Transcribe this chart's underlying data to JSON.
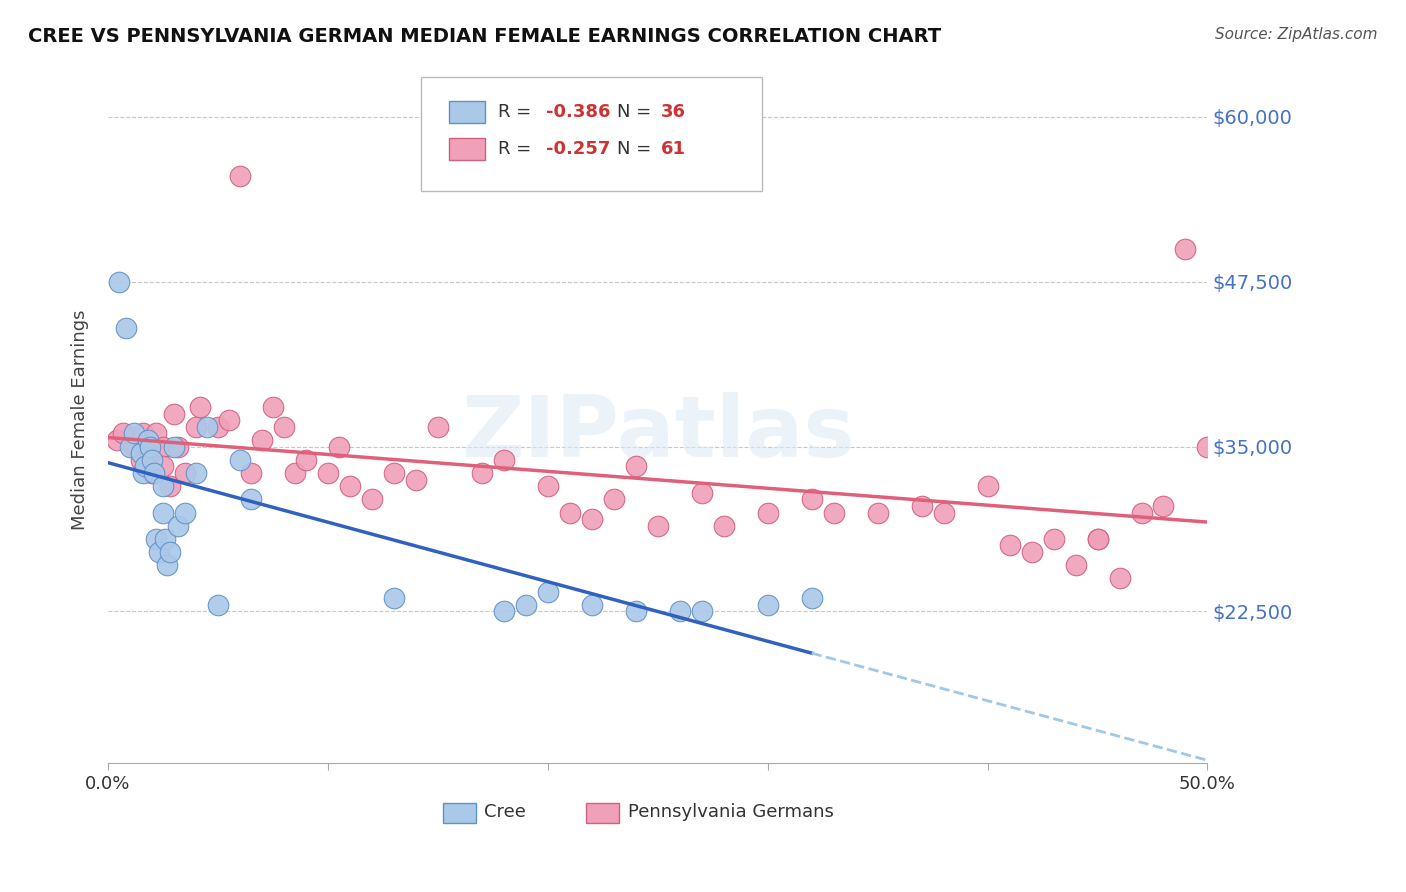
{
  "title": "CREE VS PENNSYLVANIA GERMAN MEDIAN FEMALE EARNINGS CORRELATION CHART",
  "source": "Source: ZipAtlas.com",
  "ylabel": "Median Female Earnings",
  "xmin": 0.0,
  "xmax": 0.5,
  "ymin": 11000,
  "ymax": 63000,
  "yticks": [
    22500,
    35000,
    47500,
    60000
  ],
  "ytick_labels": [
    "$22,500",
    "$35,000",
    "$47,500",
    "$60,000"
  ],
  "background_color": "#ffffff",
  "cree_color": "#aac8e8",
  "cree_edge_color": "#6090c8",
  "penn_color": "#f0a0b8",
  "penn_edge_color": "#d06080",
  "cree_R": -0.386,
  "cree_N": 36,
  "penn_R": -0.257,
  "penn_N": 61,
  "cree_line_color": "#3060c0",
  "penn_line_color": "#e0607a",
  "dashed_line_color": "#a0c8e8",
  "cree_scatter_x": [
    0.005,
    0.008,
    0.01,
    0.012,
    0.015,
    0.016,
    0.017,
    0.018,
    0.019,
    0.02,
    0.021,
    0.022,
    0.023,
    0.025,
    0.025,
    0.026,
    0.027,
    0.028,
    0.03,
    0.032,
    0.035,
    0.04,
    0.045,
    0.05,
    0.06,
    0.065,
    0.13,
    0.18,
    0.19,
    0.2,
    0.22,
    0.24,
    0.26,
    0.27,
    0.3,
    0.32
  ],
  "cree_scatter_y": [
    47500,
    44000,
    35000,
    36000,
    34500,
    33000,
    33500,
    35500,
    35000,
    34000,
    33000,
    28000,
    27000,
    32000,
    30000,
    28000,
    26000,
    27000,
    35000,
    29000,
    30000,
    33000,
    36500,
    23000,
    34000,
    31000,
    23500,
    22500,
    23000,
    24000,
    23000,
    22500,
    22500,
    22500,
    23000,
    23500
  ],
  "penn_scatter_x": [
    0.004,
    0.007,
    0.012,
    0.015,
    0.016,
    0.018,
    0.019,
    0.02,
    0.022,
    0.025,
    0.025,
    0.028,
    0.03,
    0.032,
    0.035,
    0.04,
    0.042,
    0.05,
    0.055,
    0.06,
    0.065,
    0.07,
    0.075,
    0.08,
    0.085,
    0.09,
    0.1,
    0.105,
    0.11,
    0.12,
    0.13,
    0.14,
    0.15,
    0.17,
    0.18,
    0.2,
    0.21,
    0.22,
    0.23,
    0.24,
    0.25,
    0.27,
    0.28,
    0.3,
    0.32,
    0.33,
    0.35,
    0.37,
    0.38,
    0.4,
    0.41,
    0.42,
    0.43,
    0.44,
    0.45,
    0.46,
    0.47,
    0.48,
    0.49,
    0.5,
    0.45
  ],
  "penn_scatter_y": [
    35500,
    36000,
    35000,
    34000,
    36000,
    35000,
    34500,
    33000,
    36000,
    35000,
    33500,
    32000,
    37500,
    35000,
    33000,
    36500,
    38000,
    36500,
    37000,
    55500,
    33000,
    35500,
    38000,
    36500,
    33000,
    34000,
    33000,
    35000,
    32000,
    31000,
    33000,
    32500,
    36500,
    33000,
    34000,
    32000,
    30000,
    29500,
    31000,
    33500,
    29000,
    31500,
    29000,
    30000,
    31000,
    30000,
    30000,
    30500,
    30000,
    32000,
    27500,
    27000,
    28000,
    26000,
    28000,
    25000,
    30000,
    30500,
    50000,
    35000,
    28000
  ]
}
